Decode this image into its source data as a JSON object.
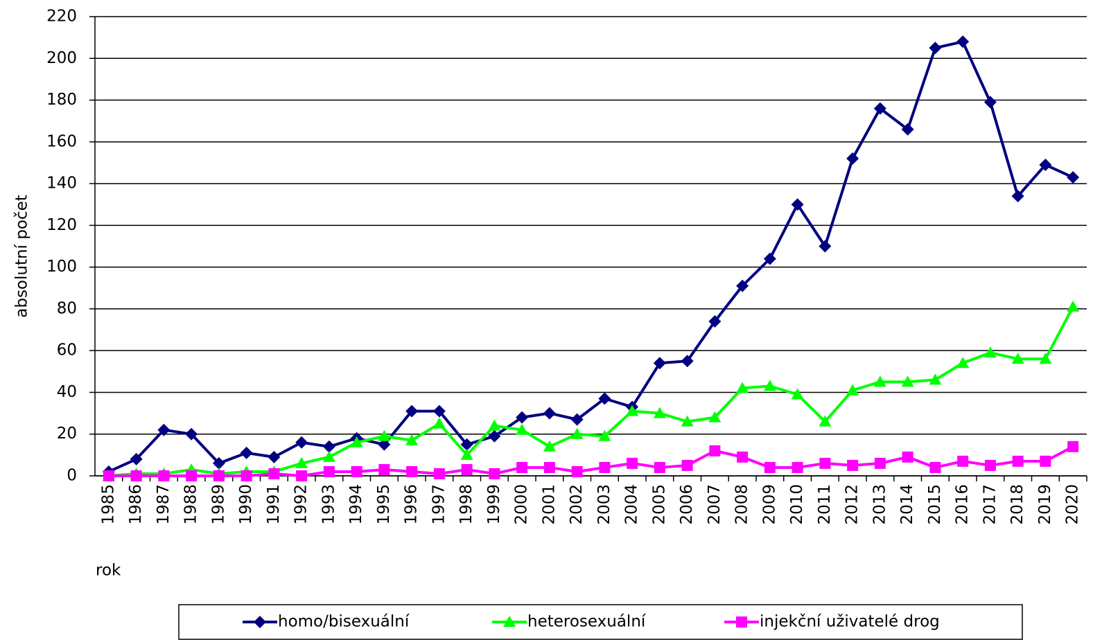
{
  "chart_data": {
    "type": "line",
    "y_label": "absolutní počet",
    "x_label": "rok",
    "categories": [
      "1985",
      "1986",
      "1987",
      "1988",
      "1989",
      "1990",
      "1991",
      "1992",
      "1993",
      "1994",
      "1995",
      "1996",
      "1997",
      "1998",
      "1999",
      "2000",
      "2001",
      "2002",
      "2003",
      "2004",
      "2005",
      "2006",
      "2007",
      "2008",
      "2009",
      "2010",
      "2011",
      "2012",
      "2013",
      "2014",
      "2015",
      "2016",
      "2017",
      "2018",
      "2019",
      "2020"
    ],
    "series": [
      {
        "name": "homo/bisexuální",
        "color": "#000080",
        "marker": "diamond",
        "values": [
          2,
          8,
          22,
          20,
          6,
          11,
          9,
          16,
          14,
          18,
          15,
          31,
          31,
          15,
          19,
          28,
          30,
          27,
          37,
          33,
          54,
          55,
          74,
          91,
          104,
          130,
          110,
          152,
          176,
          166,
          205,
          208,
          179,
          134,
          149,
          143
        ]
      },
      {
        "name": "heterosexuální",
        "color": "#00ff00",
        "marker": "triangle",
        "values": [
          0,
          1,
          1,
          3,
          1,
          2,
          2,
          6,
          9,
          16,
          19,
          17,
          25,
          10,
          24,
          22,
          14,
          20,
          19,
          31,
          30,
          26,
          28,
          42,
          43,
          39,
          26,
          41,
          45,
          45,
          46,
          54,
          59,
          56,
          56,
          81
        ]
      },
      {
        "name": "injekční uživatelé drog",
        "color": "#ff00ff",
        "marker": "square",
        "values": [
          0,
          0,
          0,
          0,
          0,
          0,
          1,
          0,
          2,
          2,
          3,
          2,
          1,
          3,
          1,
          4,
          4,
          2,
          4,
          6,
          4,
          5,
          12,
          9,
          4,
          4,
          6,
          5,
          6,
          9,
          4,
          7,
          5,
          7,
          7,
          14
        ]
      }
    ],
    "ylim": [
      0,
      220
    ],
    "yticks": [
      0,
      20,
      40,
      60,
      80,
      100,
      120,
      140,
      160,
      180,
      200,
      220
    ],
    "grid": true,
    "legend": "bottom"
  }
}
